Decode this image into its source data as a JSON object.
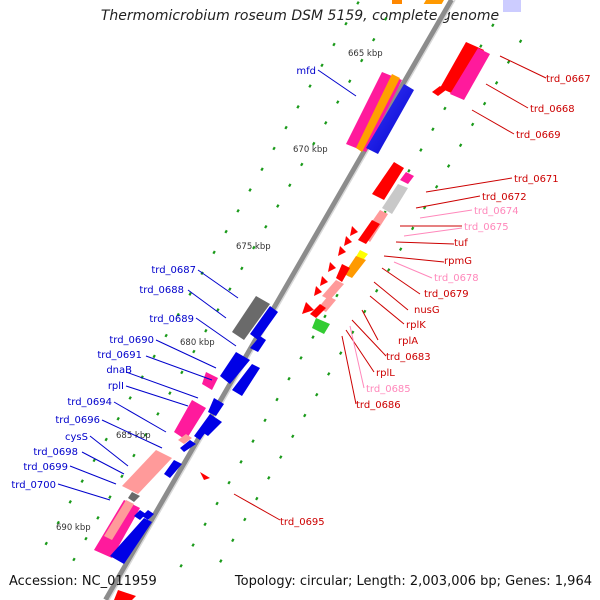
{
  "title": "Thermomicrobium roseum DSM 5159, complete genome",
  "accession": "Accession: NC_011959",
  "summary": "Topology: circular; Length: 2,003,006 bp; Genes: 1,964",
  "colors": {
    "forward_gene": "#0000e6",
    "reverse_gene": "#ff0000",
    "rrna": "#ff1a9c",
    "hypothetical": "#ff9a9a",
    "other": "#909090",
    "tick": "#1a9a1a"
  },
  "kbp_ticks": [
    {
      "id": "665",
      "label": "665 kbp"
    },
    {
      "id": "670",
      "label": "670 kbp"
    },
    {
      "id": "675",
      "label": "675 kbp"
    },
    {
      "id": "680",
      "label": "680 kbp"
    },
    {
      "id": "685",
      "label": "685 kbp"
    },
    {
      "id": "690",
      "label": "690 kbp"
    }
  ],
  "gene_labels_left": [
    {
      "id": "mfd",
      "text": "mfd"
    },
    {
      "id": "trd_0687",
      "text": "trd_0687"
    },
    {
      "id": "trd_0688",
      "text": "trd_0688"
    },
    {
      "id": "trd_0689",
      "text": "trd_0689"
    },
    {
      "id": "trd_0690",
      "text": "trd_0690"
    },
    {
      "id": "trd_0691",
      "text": "trd_0691"
    },
    {
      "id": "dnaB",
      "text": "dnaB"
    },
    {
      "id": "rplI",
      "text": "rplI"
    },
    {
      "id": "trd_0694",
      "text": "trd_0694"
    },
    {
      "id": "trd_0696",
      "text": "trd_0696"
    },
    {
      "id": "cysS",
      "text": "cysS"
    },
    {
      "id": "trd_0698",
      "text": "trd_0698"
    },
    {
      "id": "trd_0699",
      "text": "trd_0699"
    },
    {
      "id": "trd_0700",
      "text": "trd_0700"
    }
  ],
  "gene_labels_right": [
    {
      "id": "trd_0667",
      "text": "trd_0667"
    },
    {
      "id": "trd_0668",
      "text": "trd_0668"
    },
    {
      "id": "trd_0669",
      "text": "trd_0669"
    },
    {
      "id": "trd_0671",
      "text": "trd_0671"
    },
    {
      "id": "trd_0672",
      "text": "trd_0672"
    },
    {
      "id": "trd_0674",
      "text": "trd_0674"
    },
    {
      "id": "trd_0675",
      "text": "trd_0675"
    },
    {
      "id": "tuf",
      "text": "tuf"
    },
    {
      "id": "rpmG",
      "text": "rpmG"
    },
    {
      "id": "trd_0678",
      "text": "trd_0678"
    },
    {
      "id": "trd_0679",
      "text": "trd_0679"
    },
    {
      "id": "nusG",
      "text": "nusG"
    },
    {
      "id": "rplK",
      "text": "rplK"
    },
    {
      "id": "rplA",
      "text": "rplA"
    },
    {
      "id": "trd_0683",
      "text": "trd_0683"
    },
    {
      "id": "rplL",
      "text": "rplL"
    },
    {
      "id": "trd_0685",
      "text": "trd_0685"
    },
    {
      "id": "trd_0686",
      "text": "trd_0686"
    },
    {
      "id": "trd_0695",
      "text": "trd_0695"
    }
  ]
}
